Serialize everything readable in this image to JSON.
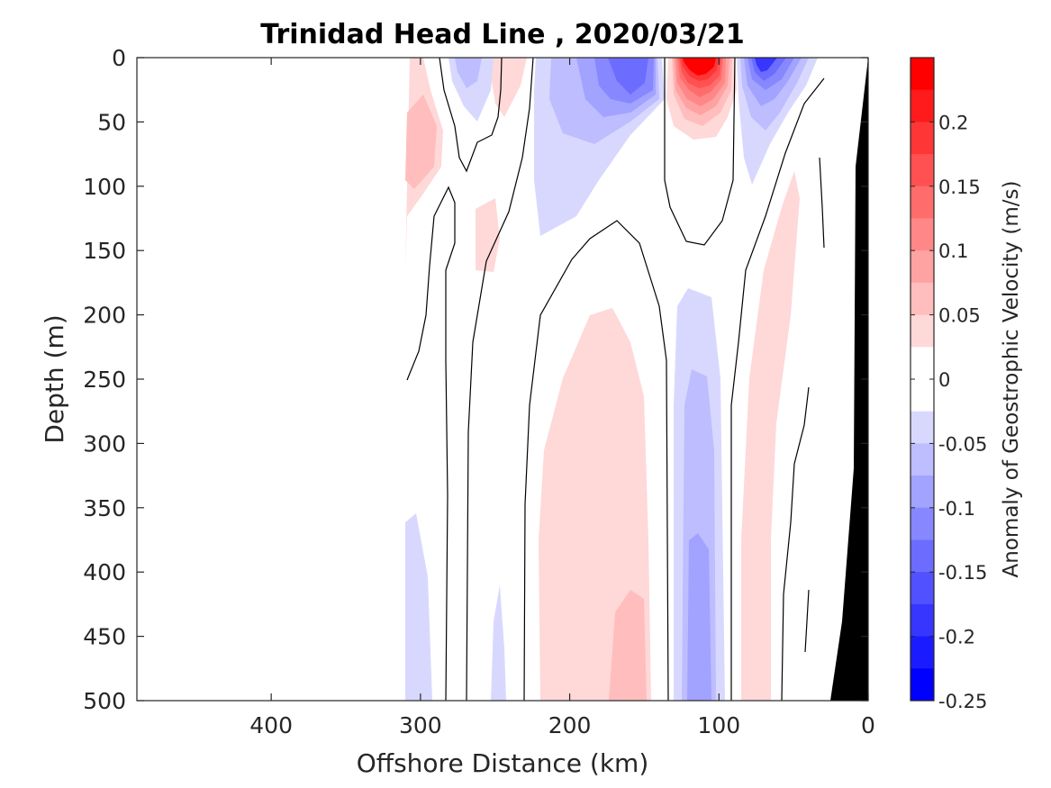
{
  "chart_data": {
    "type": "heatmap",
    "subtype": "filled-contour-section",
    "title": "Trinidad Head Line , 2020/03/21",
    "xlabel": "Offshore Distance (km)",
    "ylabel": "Depth (m)",
    "xlim": [
      490,
      0
    ],
    "x_reversed": true,
    "ylim": [
      0,
      500
    ],
    "y_reversed": true,
    "x_ticks": [
      400,
      300,
      200,
      100,
      0
    ],
    "x_tick_labels": [
      "400",
      "300",
      "200",
      "100",
      "0"
    ],
    "y_ticks": [
      0,
      50,
      100,
      150,
      200,
      250,
      300,
      350,
      400,
      450,
      500
    ],
    "y_tick_labels": [
      "0",
      "50",
      "100",
      "150",
      "200",
      "250",
      "300",
      "350",
      "400",
      "450",
      "500"
    ],
    "colorbar": {
      "label": "Anomaly of Geostrophic Velocity (m/s)",
      "clim": [
        -0.25,
        0.25
      ],
      "ticks": [
        0.2,
        0.15,
        0.1,
        0.05,
        0,
        -0.05,
        -0.1,
        -0.15,
        -0.2,
        -0.25
      ],
      "tick_labels": [
        "0.2",
        "0.15",
        "0.1",
        "0.05",
        "0",
        "-0.05",
        "-0.1",
        "-0.15",
        "-0.2",
        "-0.25"
      ],
      "colors_top_to_bottom": [
        "#ff0000",
        "#ff1b1b",
        "#ff3636",
        "#ff5151",
        "#ff6c6c",
        "#ff8787",
        "#ffa2a2",
        "#ffbdbd",
        "#ffd8d8",
        "#ffffff",
        "#ffffff",
        "#d8d8ff",
        "#bdbdff",
        "#a2a2ff",
        "#8787ff",
        "#6c6cff",
        "#5151ff",
        "#3636ff",
        "#1b1bff",
        "#0000ff"
      ]
    },
    "features": [
      {
        "name": "strong-poleward-core",
        "sign": "positive",
        "x_km": [
          135,
          90
        ],
        "depth_m": [
          0,
          145
        ],
        "peak": 0.25
      },
      {
        "name": "equatorward-core-offshore",
        "sign": "negative",
        "x_km": [
          225,
          135
        ],
        "depth_m": [
          0,
          130
        ],
        "peak": -0.15
      },
      {
        "name": "equatorward-core-nearshore",
        "sign": "negative",
        "x_km": [
          100,
          55
        ],
        "depth_m": [
          0,
          110
        ],
        "peak": -0.2
      },
      {
        "name": "deep-equatorward-band",
        "sign": "negative",
        "x_km": [
          132,
          88
        ],
        "depth_m": [
          180,
          500
        ],
        "peak": -0.1
      },
      {
        "name": "deep-poleward-band",
        "sign": "positive",
        "x_km": [
          220,
          170
        ],
        "depth_m": [
          200,
          500
        ],
        "peak": 0.05
      },
      {
        "name": "offshore-poleward-lobe",
        "sign": "positive",
        "x_km": [
          310,
          290
        ],
        "depth_m": [
          0,
          165
        ],
        "peak": 0.1
      }
    ],
    "bathymetry": {
      "color": "#000000",
      "x_km": [
        0,
        5,
        10,
        15,
        20,
        25
      ],
      "bottom_depth_m": [
        0,
        85,
        300,
        420,
        470,
        500
      ]
    }
  }
}
